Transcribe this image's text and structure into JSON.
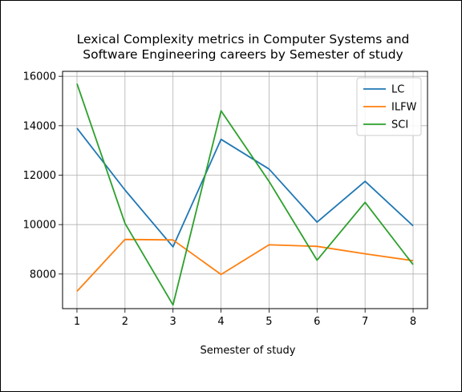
{
  "chart_data": {
    "type": "line",
    "title": "Lexical Complexity metrics in Computer Systems and Software Engineering careers by Semester of study",
    "title_lines": [
      "Lexical Complexity metrics in Computer Systems and",
      "Software Engineering careers by Semester of study"
    ],
    "xlabel": "Semester of study",
    "ylabel": "",
    "x": [
      1,
      2,
      3,
      4,
      5,
      6,
      7,
      8
    ],
    "xlim": [
      0.7,
      8.3
    ],
    "ylim": [
      6600,
      16200
    ],
    "yticks": [
      8000,
      10000,
      12000,
      14000,
      16000
    ],
    "grid": true,
    "legend_position": "top-right",
    "series": [
      {
        "name": "LC",
        "color": "#1f77b4",
        "values": [
          13900,
          11400,
          9100,
          13450,
          12250,
          10100,
          11750,
          9950
        ]
      },
      {
        "name": "ILFW",
        "color": "#ff7f0e",
        "values": [
          7300,
          9400,
          9380,
          7980,
          9180,
          9120,
          8820,
          8540
        ]
      },
      {
        "name": "SCI",
        "color": "#2ca02c",
        "values": [
          15700,
          10050,
          6750,
          14600,
          11750,
          8560,
          10900,
          8380
        ]
      }
    ]
  }
}
